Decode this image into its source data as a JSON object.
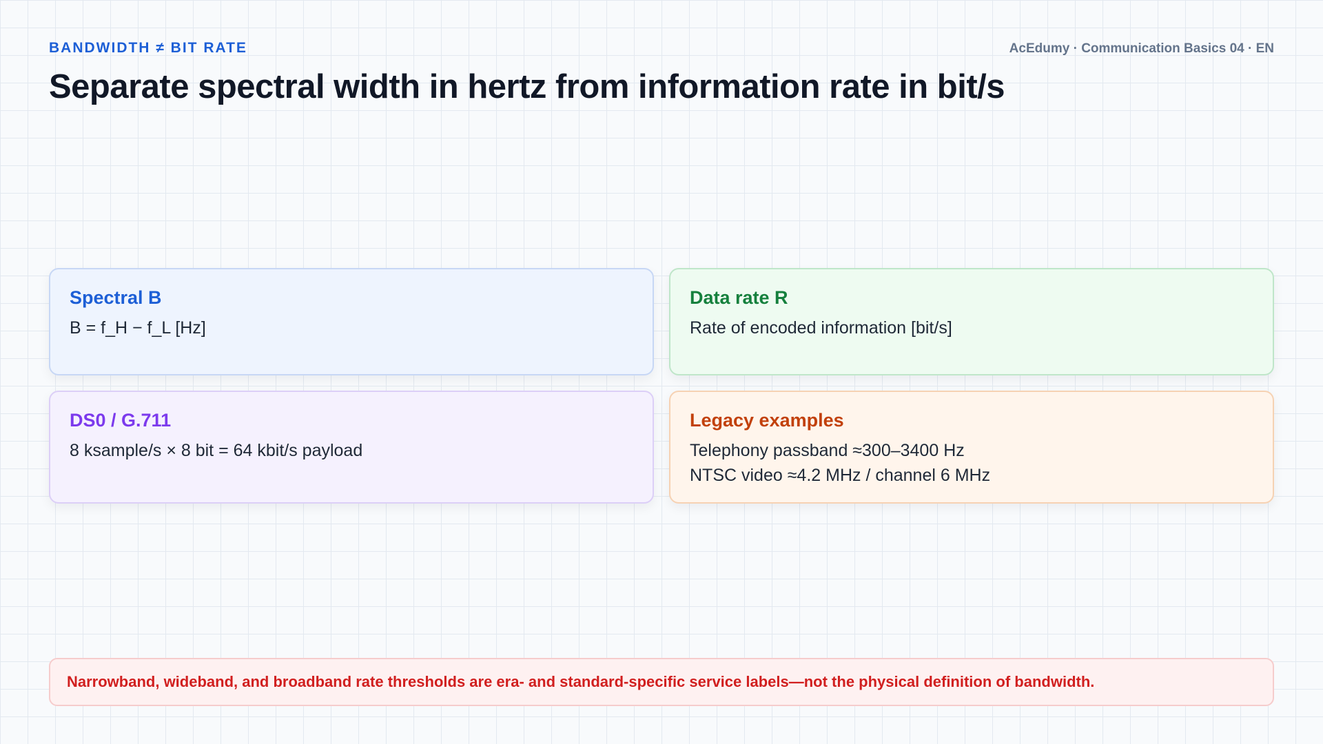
{
  "header": {
    "kicker": "BANDWIDTH ≠ BIT RATE",
    "meta": "AcEdumy · Communication Basics 04 · EN",
    "title": "Separate spectral width in hertz from information rate in bit/s"
  },
  "cards": [
    {
      "title": "Spectral B",
      "lines": [
        "B = f_H − f_L [Hz]"
      ]
    },
    {
      "title": "Data rate R",
      "lines": [
        "Rate of encoded information [bit/s]"
      ]
    },
    {
      "title": "DS0 / G.711",
      "lines": [
        "8 ksample/s × 8 bit = 64 kbit/s payload"
      ]
    },
    {
      "title": "Legacy examples",
      "lines": [
        "Telephony passband ≈300–3400 Hz",
        "NTSC video ≈4.2 MHz / channel 6 MHz"
      ]
    }
  ],
  "note": "Narrowband, wideband, and broadband rate thresholds are era- and standard-specific service labels—not the physical definition of bandwidth."
}
